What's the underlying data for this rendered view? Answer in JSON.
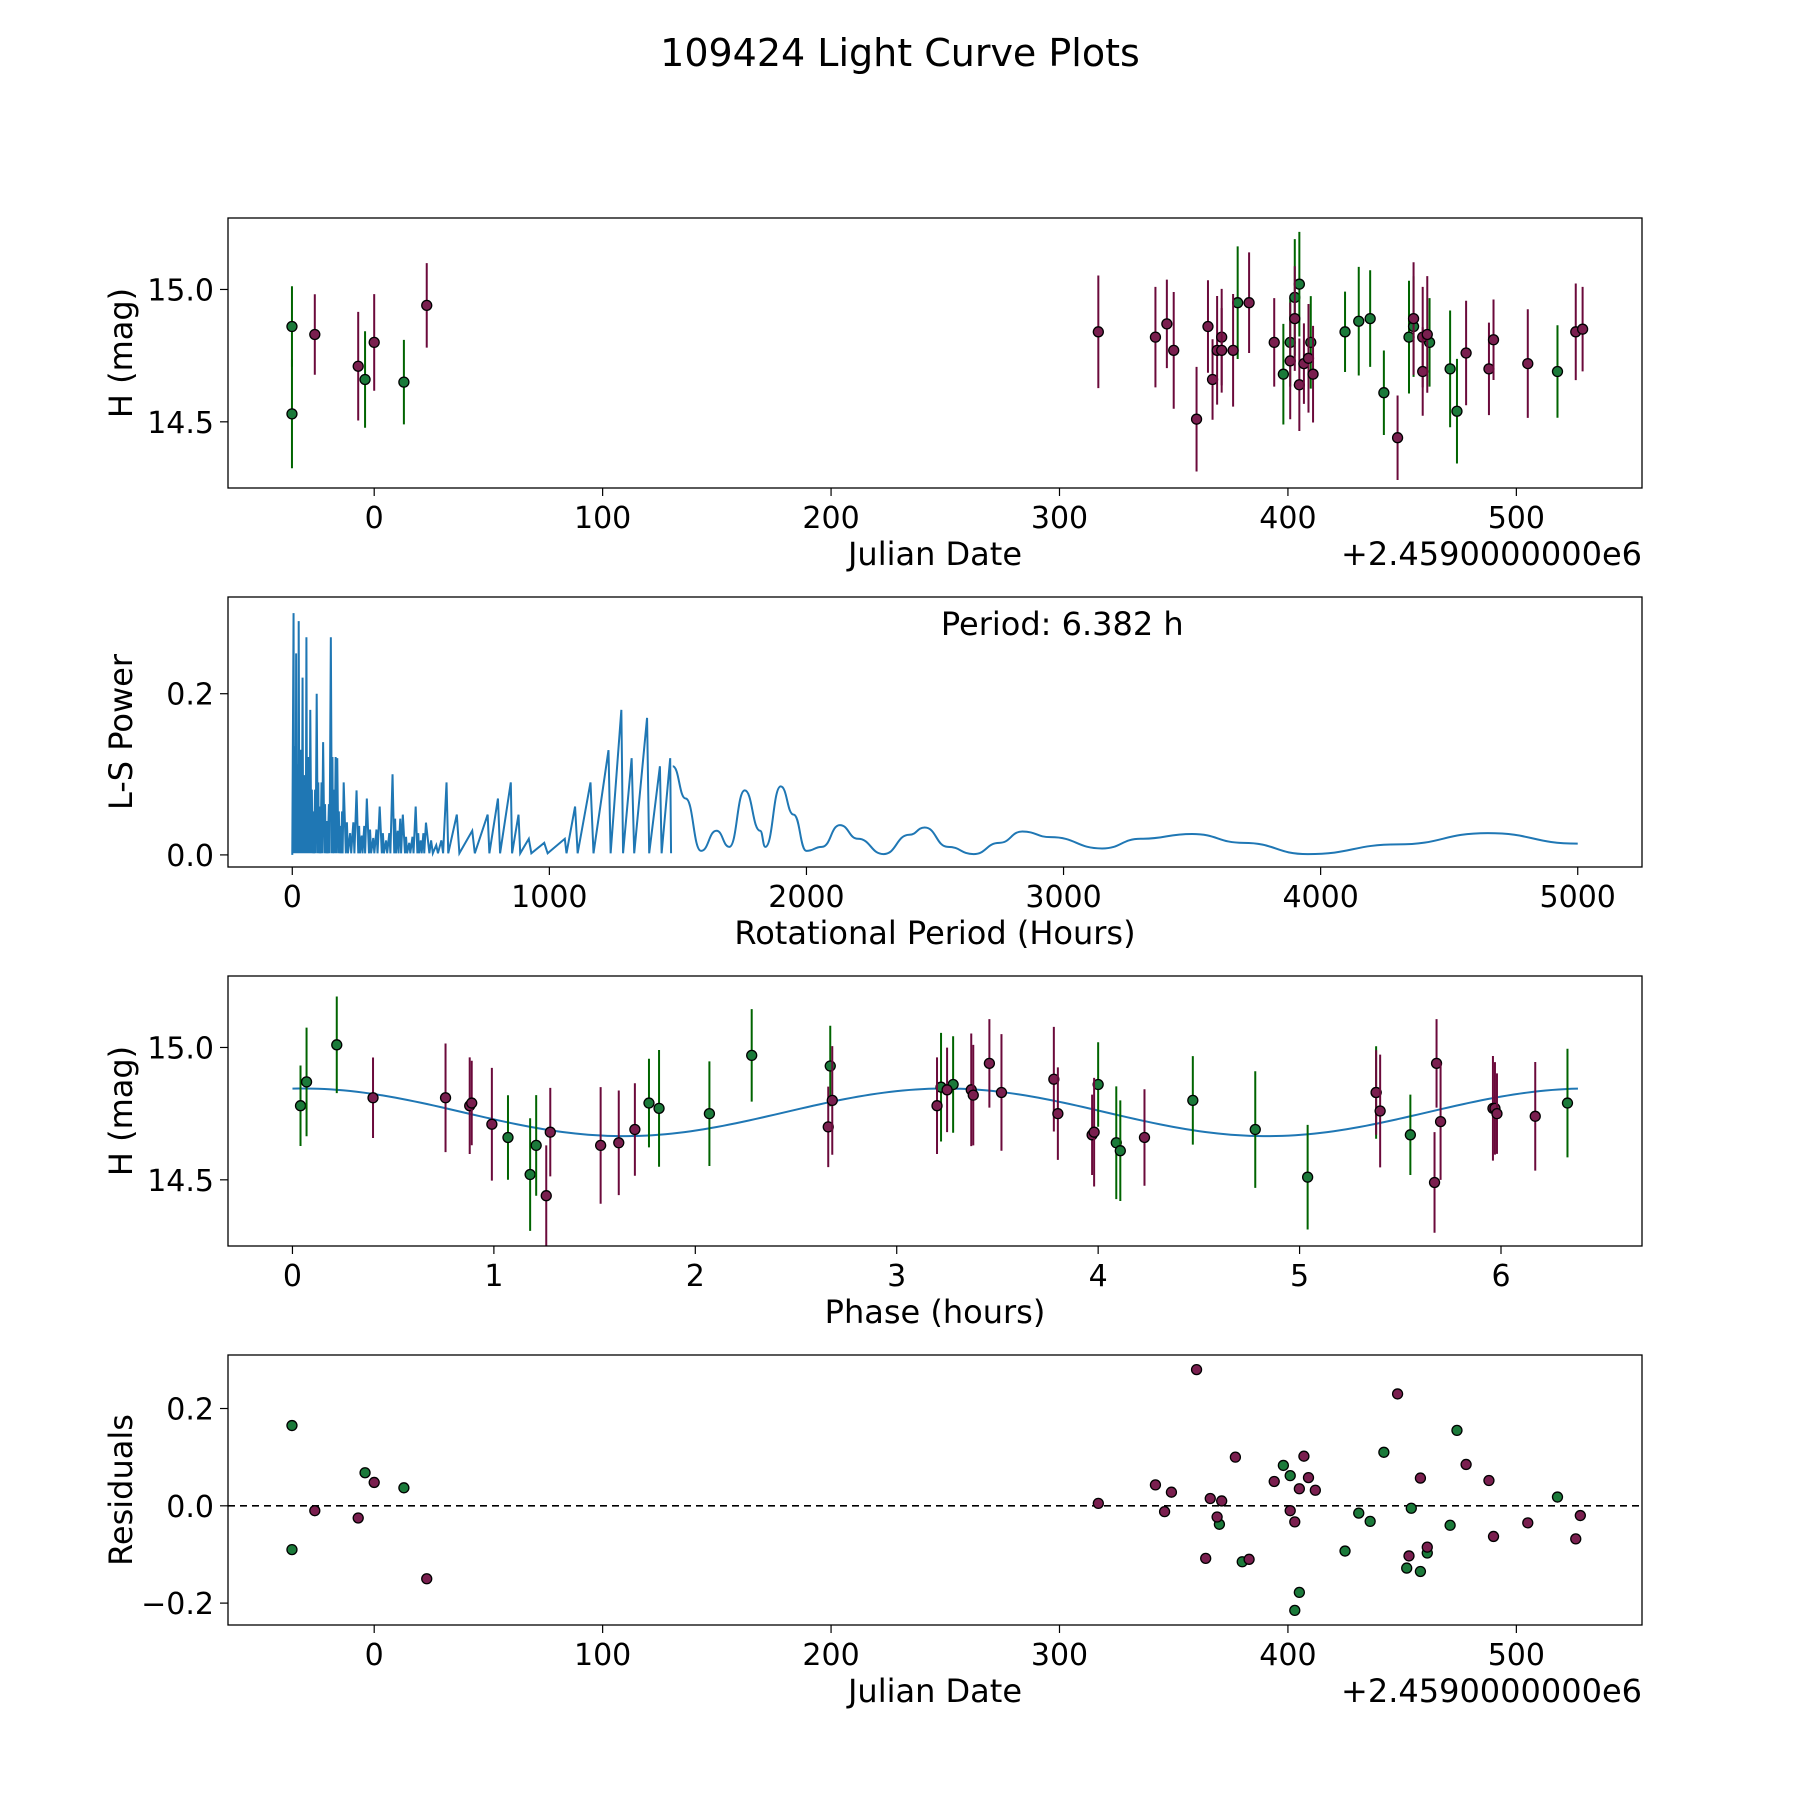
{
  "suptitle": "109424 Light Curve Plots",
  "colors": {
    "green": "#1b7a3a",
    "purple": "#7a1f4f",
    "curve": "#1f77b4",
    "green_bar": "#006400",
    "purple_bar": "#6b0a3b"
  },
  "chart_data": [
    {
      "id": "lightcurve",
      "type": "scatter",
      "xlabel": "Julian Date",
      "ylabel": "H (mag)",
      "offset_text": "+2.4590000000e6",
      "xlim": [
        -64,
        555
      ],
      "ylim": [
        14.25,
        15.27
      ],
      "xticks": [
        0,
        100,
        200,
        300,
        400,
        500
      ],
      "xtick_labels": [
        "0",
        "100",
        "200",
        "300",
        "400",
        "500"
      ],
      "yticks": [
        14.5,
        15.0
      ],
      "ytick_labels": [
        "14.5",
        "15.0"
      ],
      "errorbar": 0.19,
      "series": [
        {
          "name": "green",
          "points": [
            [
              -36,
              14.86
            ],
            [
              -36,
              14.53
            ],
            [
              -4,
              14.66
            ],
            [
              13,
              14.65
            ],
            [
              378,
              14.95
            ],
            [
              398,
              14.68
            ],
            [
              401,
              14.8
            ],
            [
              403,
              14.97
            ],
            [
              405,
              15.02
            ],
            [
              410,
              14.8
            ],
            [
              425,
              14.84
            ],
            [
              431,
              14.88
            ],
            [
              436,
              14.89
            ],
            [
              442,
              14.61
            ],
            [
              453,
              14.82
            ],
            [
              455,
              14.86
            ],
            [
              462,
              14.8
            ],
            [
              471,
              14.7
            ],
            [
              474,
              14.54
            ],
            [
              518,
              14.69
            ]
          ]
        },
        {
          "name": "purple",
          "points": [
            [
              -26,
              14.83
            ],
            [
              -7,
              14.71
            ],
            [
              0,
              14.8
            ],
            [
              23,
              14.94
            ],
            [
              317,
              14.84
            ],
            [
              342,
              14.82
            ],
            [
              347,
              14.87
            ],
            [
              350,
              14.77
            ],
            [
              360,
              14.51
            ],
            [
              365,
              14.86
            ],
            [
              367,
              14.66
            ],
            [
              369,
              14.77
            ],
            [
              371,
              14.82
            ],
            [
              371,
              14.77
            ],
            [
              376,
              14.77
            ],
            [
              383,
              14.95
            ],
            [
              394,
              14.8
            ],
            [
              401,
              14.73
            ],
            [
              403,
              14.89
            ],
            [
              405,
              14.64
            ],
            [
              407,
              14.72
            ],
            [
              409,
              14.74
            ],
            [
              411,
              14.68
            ],
            [
              448,
              14.44
            ],
            [
              455,
              14.89
            ],
            [
              459,
              14.82
            ],
            [
              459,
              14.69
            ],
            [
              461,
              14.83
            ],
            [
              478,
              14.76
            ],
            [
              488,
              14.7
            ],
            [
              490,
              14.81
            ],
            [
              505,
              14.72
            ],
            [
              526,
              14.84
            ],
            [
              529,
              14.85
            ]
          ]
        }
      ]
    },
    {
      "id": "periodogram",
      "type": "line",
      "xlabel": "Rotational Period (Hours)",
      "ylabel": "L-S Power",
      "annotation": "Period: 6.382 h",
      "xlim": [
        -250,
        5250
      ],
      "ylim": [
        -0.015,
        0.32
      ],
      "xticks": [
        0,
        1000,
        2000,
        3000,
        4000,
        5000
      ],
      "xtick_labels": [
        "0",
        "1000",
        "2000",
        "3000",
        "4000",
        "5000"
      ],
      "yticks": [
        0.0,
        0.2
      ],
      "ytick_labels": [
        "0.0",
        "0.2"
      ],
      "spikes": [
        [
          5,
          0.3
        ],
        [
          15,
          0.25
        ],
        [
          25,
          0.29
        ],
        [
          40,
          0.22
        ],
        [
          55,
          0.27
        ],
        [
          70,
          0.18
        ],
        [
          95,
          0.2
        ],
        [
          120,
          0.14
        ],
        [
          150,
          0.27
        ],
        [
          175,
          0.12
        ],
        [
          200,
          0.09
        ],
        [
          250,
          0.08
        ],
        [
          290,
          0.07
        ],
        [
          340,
          0.06
        ],
        [
          390,
          0.1
        ],
        [
          430,
          0.05
        ],
        [
          480,
          0.06
        ],
        [
          520,
          0.04
        ],
        [
          600,
          0.09
        ],
        [
          640,
          0.05
        ],
        [
          700,
          0.03
        ],
        [
          760,
          0.05
        ],
        [
          800,
          0.07
        ],
        [
          850,
          0.09
        ],
        [
          880,
          0.05
        ],
        [
          920,
          0.02
        ],
        [
          980,
          0.015
        ],
        [
          1060,
          0.02
        ],
        [
          1100,
          0.06
        ],
        [
          1160,
          0.09
        ],
        [
          1230,
          0.13
        ],
        [
          1280,
          0.18
        ],
        [
          1320,
          0.12
        ],
        [
          1380,
          0.17
        ],
        [
          1430,
          0.11
        ],
        [
          1470,
          0.12
        ]
      ],
      "smooth": [
        [
          1480,
          0.11
        ],
        [
          1530,
          0.07
        ],
        [
          1590,
          0.005
        ],
        [
          1650,
          0.03
        ],
        [
          1700,
          0.01
        ],
        [
          1760,
          0.08
        ],
        [
          1820,
          0.03
        ],
        [
          1840,
          0.01
        ],
        [
          1900,
          0.085
        ],
        [
          1950,
          0.05
        ],
        [
          2000,
          0.005
        ],
        [
          2060,
          0.01
        ],
        [
          2130,
          0.037
        ],
        [
          2200,
          0.02
        ],
        [
          2300,
          0.001
        ],
        [
          2400,
          0.025
        ],
        [
          2460,
          0.034
        ],
        [
          2550,
          0.01
        ],
        [
          2650,
          0.001
        ],
        [
          2750,
          0.015
        ],
        [
          2840,
          0.029
        ],
        [
          2950,
          0.022
        ],
        [
          3150,
          0.008
        ],
        [
          3300,
          0.02
        ],
        [
          3500,
          0.026
        ],
        [
          3700,
          0.015
        ],
        [
          3950,
          0.001
        ],
        [
          4300,
          0.013
        ],
        [
          4650,
          0.027
        ],
        [
          5000,
          0.014
        ]
      ]
    },
    {
      "id": "phase",
      "type": "scatter",
      "xlabel": "Phase (hours)",
      "ylabel": "H (mag)",
      "xlim": [
        -0.32,
        6.7
      ],
      "ylim": [
        14.25,
        15.27
      ],
      "xticks": [
        0,
        1,
        2,
        3,
        4,
        5,
        6
      ],
      "xtick_labels": [
        "0",
        "1",
        "2",
        "3",
        "4",
        "5",
        "6"
      ],
      "yticks": [
        14.5,
        15.0
      ],
      "ytick_labels": [
        "14.5",
        "15.0"
      ],
      "errorbar": 0.19,
      "model": {
        "period": 6.382,
        "mean": 14.755,
        "amplitude": 0.09,
        "peak_phase": 0.05,
        "harmonic": 2
      },
      "series": [
        {
          "name": "green",
          "points": [
            [
              0.04,
              14.78
            ],
            [
              0.07,
              14.87
            ],
            [
              0.22,
              15.01
            ],
            [
              1.07,
              14.66
            ],
            [
              1.18,
              14.52
            ],
            [
              1.21,
              14.63
            ],
            [
              1.77,
              14.79
            ],
            [
              1.82,
              14.77
            ],
            [
              2.07,
              14.75
            ],
            [
              2.28,
              14.97
            ],
            [
              2.67,
              14.93
            ],
            [
              3.22,
              14.85
            ],
            [
              3.28,
              14.86
            ],
            [
              4.0,
              14.86
            ],
            [
              4.09,
              14.64
            ],
            [
              4.11,
              14.61
            ],
            [
              4.47,
              14.8
            ],
            [
              4.78,
              14.69
            ],
            [
              5.04,
              14.51
            ],
            [
              5.38,
              14.83
            ],
            [
              5.55,
              14.67
            ],
            [
              6.33,
              14.79
            ]
          ]
        },
        {
          "name": "purple",
          "points": [
            [
              0.4,
              14.81
            ],
            [
              0.76,
              14.81
            ],
            [
              0.88,
              14.78
            ],
            [
              0.89,
              14.79
            ],
            [
              0.99,
              14.71
            ],
            [
              1.26,
              14.44
            ],
            [
              1.28,
              14.68
            ],
            [
              1.53,
              14.63
            ],
            [
              1.62,
              14.64
            ],
            [
              1.7,
              14.69
            ],
            [
              2.66,
              14.7
            ],
            [
              2.68,
              14.8
            ],
            [
              3.2,
              14.78
            ],
            [
              3.25,
              14.84
            ],
            [
              3.37,
              14.84
            ],
            [
              3.38,
              14.82
            ],
            [
              3.46,
              14.94
            ],
            [
              3.52,
              14.83
            ],
            [
              3.78,
              14.88
            ],
            [
              3.8,
              14.75
            ],
            [
              3.97,
              14.67
            ],
            [
              3.98,
              14.68
            ],
            [
              4.23,
              14.66
            ],
            [
              5.38,
              14.83
            ],
            [
              5.4,
              14.76
            ],
            [
              5.67,
              14.49
            ],
            [
              5.68,
              14.94
            ],
            [
              5.7,
              14.72
            ],
            [
              5.96,
              14.77
            ],
            [
              5.97,
              14.77
            ],
            [
              5.98,
              14.75
            ],
            [
              6.17,
              14.74
            ]
          ]
        }
      ]
    },
    {
      "id": "residuals",
      "type": "scatter",
      "xlabel": "Julian Date",
      "ylabel": "Residuals",
      "offset_text": "+2.4590000000e6",
      "xlim": [
        -64,
        555
      ],
      "ylim": [
        -0.245,
        0.31
      ],
      "xticks": [
        0,
        100,
        200,
        300,
        400,
        500
      ],
      "xtick_labels": [
        "0",
        "100",
        "200",
        "300",
        "400",
        "500"
      ],
      "yticks": [
        -0.2,
        0.0,
        0.2
      ],
      "ytick_labels": [
        "−0.2",
        "0.0",
        "0.2"
      ],
      "series": [
        {
          "name": "green",
          "points": [
            [
              -36,
              0.165
            ],
            [
              -36,
              -0.09
            ],
            [
              -4,
              0.068
            ],
            [
              13,
              0.037
            ],
            [
              370,
              -0.038
            ],
            [
              380,
              -0.115
            ],
            [
              398,
              0.083
            ],
            [
              401,
              0.062
            ],
            [
              403,
              -0.215
            ],
            [
              405,
              -0.178
            ],
            [
              425,
              -0.093
            ],
            [
              431,
              -0.015
            ],
            [
              436,
              -0.032
            ],
            [
              442,
              0.11
            ],
            [
              452,
              -0.128
            ],
            [
              454,
              -0.005
            ],
            [
              458,
              -0.135
            ],
            [
              461,
              -0.097
            ],
            [
              471,
              -0.04
            ],
            [
              474,
              0.155
            ],
            [
              518,
              0.018
            ]
          ]
        },
        {
          "name": "purple",
          "points": [
            [
              -26,
              -0.01
            ],
            [
              -7,
              -0.025
            ],
            [
              0,
              0.048
            ],
            [
              23,
              -0.15
            ],
            [
              317,
              0.005
            ],
            [
              342,
              0.043
            ],
            [
              346,
              -0.012
            ],
            [
              349,
              0.028
            ],
            [
              360,
              0.28
            ],
            [
              364,
              -0.108
            ],
            [
              366,
              0.015
            ],
            [
              369,
              -0.023
            ],
            [
              371,
              0.01
            ],
            [
              377,
              0.1
            ],
            [
              383,
              -0.11
            ],
            [
              394,
              0.05
            ],
            [
              401,
              -0.01
            ],
            [
              403,
              -0.033
            ],
            [
              405,
              0.035
            ],
            [
              407,
              0.102
            ],
            [
              409,
              0.058
            ],
            [
              412,
              0.032
            ],
            [
              448,
              0.23
            ],
            [
              453,
              -0.103
            ],
            [
              458,
              0.057
            ],
            [
              461,
              -0.085
            ],
            [
              478,
              0.085
            ],
            [
              488,
              0.052
            ],
            [
              490,
              -0.063
            ],
            [
              505,
              -0.035
            ],
            [
              526,
              -0.068
            ],
            [
              528,
              -0.02
            ]
          ]
        }
      ]
    }
  ]
}
